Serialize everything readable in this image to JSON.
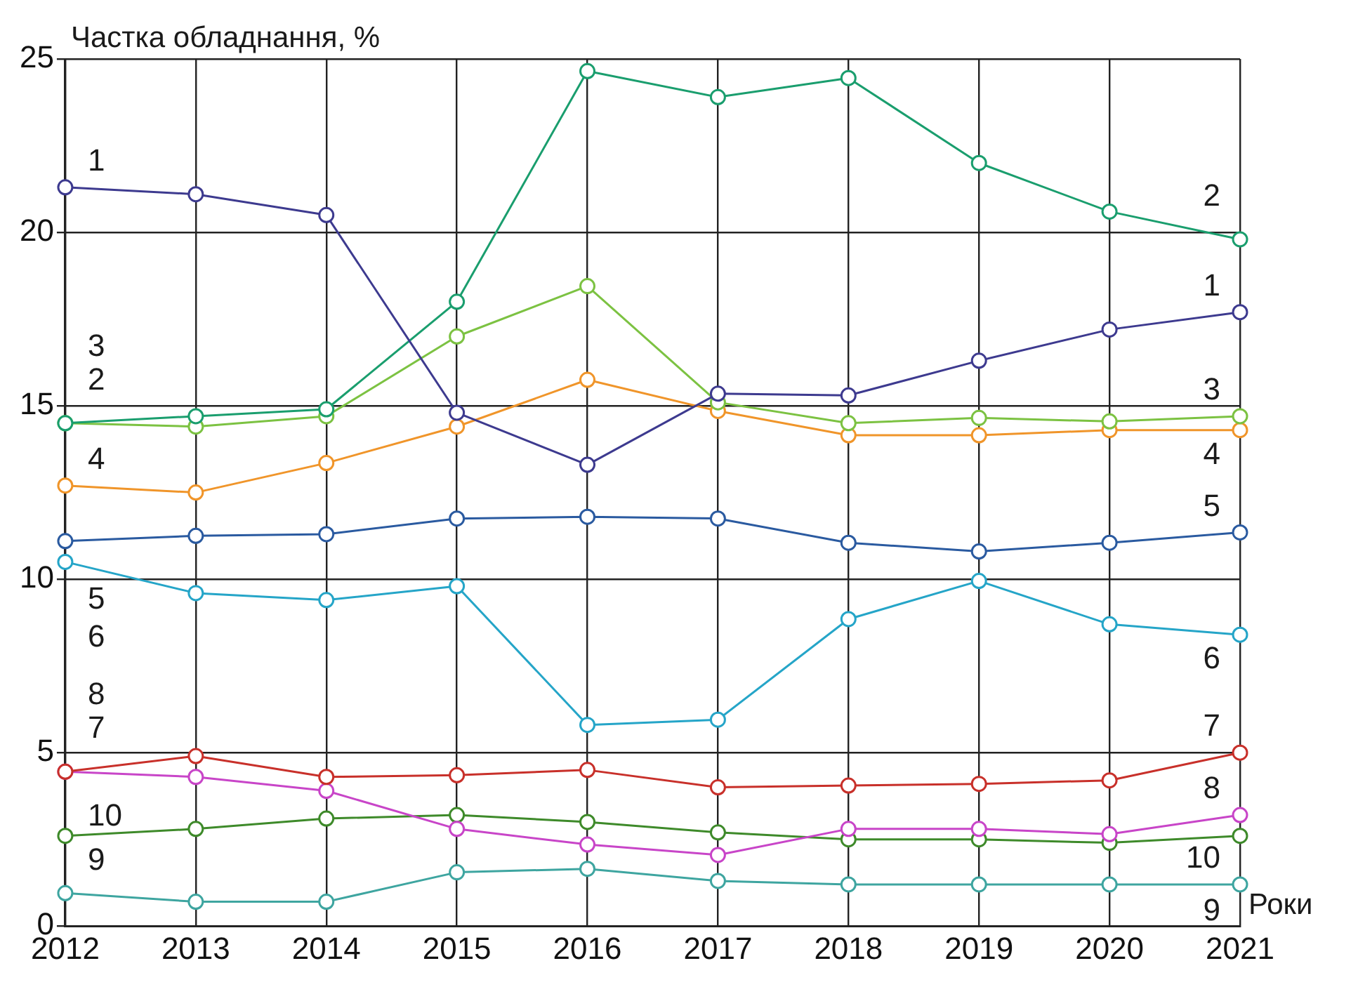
{
  "chart_data": {
    "type": "line",
    "ylabel": "Частка обладнання, %",
    "xlabel": "Роки",
    "categories": [
      "2012",
      "2013",
      "2014",
      "2015",
      "2016",
      "2017",
      "2018",
      "2019",
      "2020",
      "2021"
    ],
    "series": [
      {
        "name": "1",
        "color": "#3d3a8f",
        "values": [
          21.3,
          21.1,
          20.5,
          14.8,
          13.3,
          15.35,
          15.3,
          16.3,
          17.2,
          17.7
        ]
      },
      {
        "name": "2",
        "color": "#1a9e6e",
        "values": [
          14.5,
          14.7,
          14.9,
          18.0,
          24.65,
          23.9,
          24.45,
          22.0,
          20.6,
          19.8
        ]
      },
      {
        "name": "3",
        "color": "#7cc242",
        "values": [
          14.5,
          14.4,
          14.7,
          17.0,
          18.45,
          15.1,
          14.5,
          14.65,
          14.55,
          14.7
        ]
      },
      {
        "name": "4",
        "color": "#f0952a",
        "values": [
          12.7,
          12.5,
          13.35,
          14.4,
          15.75,
          14.85,
          14.15,
          14.15,
          14.3,
          14.3
        ]
      },
      {
        "name": "5",
        "color": "#2a5aa0",
        "values": [
          11.1,
          11.25,
          11.3,
          11.75,
          11.8,
          11.75,
          11.05,
          10.8,
          11.05,
          11.35
        ]
      },
      {
        "name": "6",
        "color": "#25a5c8",
        "values": [
          10.5,
          9.6,
          9.4,
          9.8,
          5.8,
          5.95,
          8.85,
          9.95,
          8.7,
          8.4
        ]
      },
      {
        "name": "7",
        "color": "#c8302a",
        "values": [
          4.45,
          4.9,
          4.3,
          4.35,
          4.5,
          4.0,
          4.05,
          4.1,
          4.2,
          5.0
        ]
      },
      {
        "name": "8",
        "color": "#c845c8",
        "values": [
          4.45,
          4.3,
          3.9,
          2.8,
          2.35,
          2.05,
          2.8,
          2.8,
          2.65,
          3.2
        ]
      },
      {
        "name": "9",
        "color": "#3e8a2a",
        "values": [
          2.6,
          2.8,
          3.1,
          3.2,
          3.0,
          2.7,
          2.5,
          2.5,
          2.4,
          2.6
        ]
      },
      {
        "name": "10",
        "color": "#3ea5a0",
        "values": [
          0.95,
          0.7,
          0.7,
          1.55,
          1.65,
          1.3,
          1.2,
          1.2,
          1.2,
          1.2
        ]
      }
    ],
    "ylim": [
      0,
      25
    ],
    "yticks": [
      0,
      5,
      10,
      15,
      20,
      25
    ],
    "grid": true,
    "legend": false,
    "marker": "circle",
    "line_style": "solid"
  }
}
